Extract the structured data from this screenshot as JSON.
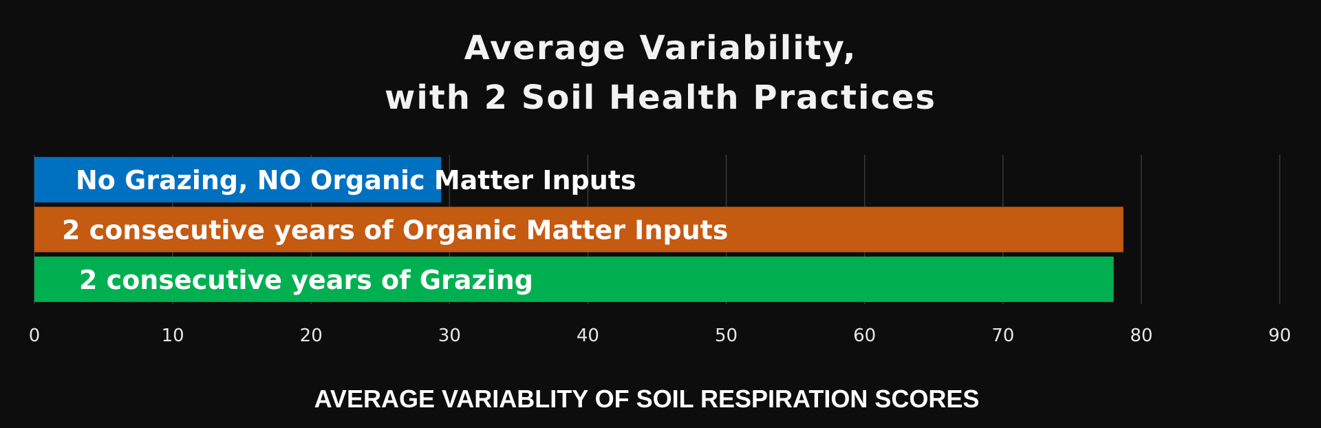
{
  "chart_data": {
    "type": "bar",
    "orientation": "horizontal",
    "title_lines": [
      "Average Variability,",
      "with 2 Soil Health Practices"
    ],
    "xlabel": "AVERAGE VARIABLITY OF SOIL RESPIRATION SCORES",
    "ylabel": "",
    "xlim": [
      0,
      90
    ],
    "xticks": [
      0,
      10,
      20,
      30,
      40,
      50,
      60,
      70,
      80,
      90
    ],
    "grid": true,
    "categories": [
      "No Grazing, NO Organic Matter Inputs",
      "2 consecutive years of Organic Matter Inputs",
      "2 consecutive years of Grazing"
    ],
    "values": [
      29.4,
      78.7,
      78.0
    ],
    "colors": [
      "#0070c0",
      "#c55a11",
      "#00b050"
    ]
  }
}
